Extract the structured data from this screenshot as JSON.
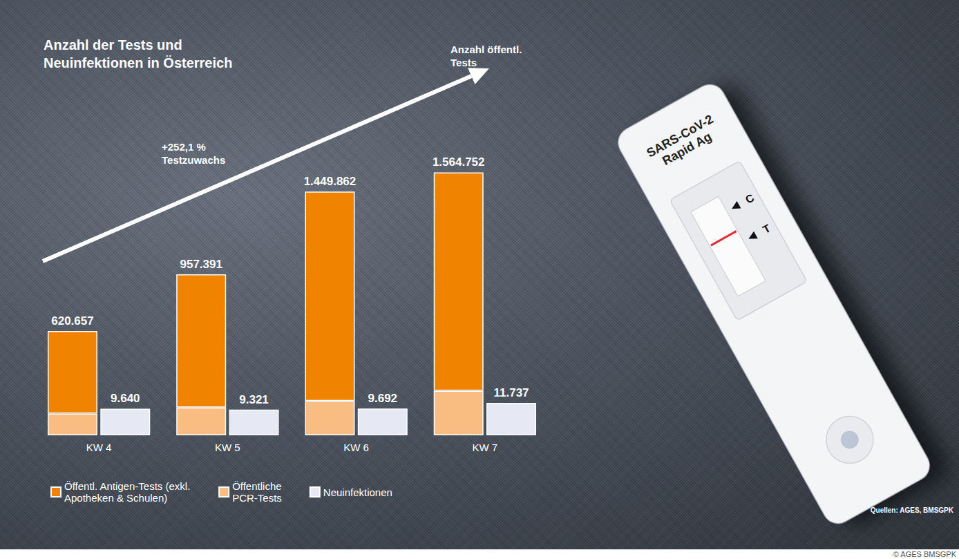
{
  "chart_data": {
    "type": "bar",
    "title": "Anzahl der Tests und Neuinfektionen in Österreich",
    "annotations": [
      "Anzahl öffentl. Tests",
      "+252,1 % Testzuwachs"
    ],
    "categories": [
      "KW 4",
      "KW 5",
      "KW 6",
      "KW 7"
    ],
    "series": [
      {
        "name": "Öffentl. Antigen-Tests (exkl. Apotheken & Schulen)",
        "color": "#f08300",
        "values": [
          490657,
          792391,
          1244862,
          1299752
        ]
      },
      {
        "name": "Öffentliche PCR-Tests",
        "color": "#f9bd82",
        "values": [
          130000,
          165000,
          205000,
          265000
        ]
      },
      {
        "name": "Neuinfektionen",
        "color": "#e6e8f4",
        "values": [
          9640,
          9321,
          9692,
          11737
        ],
        "value_labels": [
          "9.640",
          "9.321",
          "9.692",
          "11.737"
        ],
        "axis": "y2"
      }
    ],
    "totals": [
      620657,
      957391,
      1449862,
      1564752
    ],
    "total_labels": [
      "620.657",
      "957.391",
      "1.449.862",
      "1.564.752"
    ],
    "ylim": [
      0,
      1850000
    ],
    "y2lim": [
      0,
      112500
    ],
    "stacked": true,
    "data_labels": true,
    "grid": false,
    "tick_labels": "x",
    "legend": "bottom left",
    "source": "Quellen: AGES, BMSGPK",
    "credit": "© AGES BMSGPK",
    "image_texts": [
      "SARS-CoV-2 Rapid Ag",
      "C",
      "T"
    ]
  }
}
